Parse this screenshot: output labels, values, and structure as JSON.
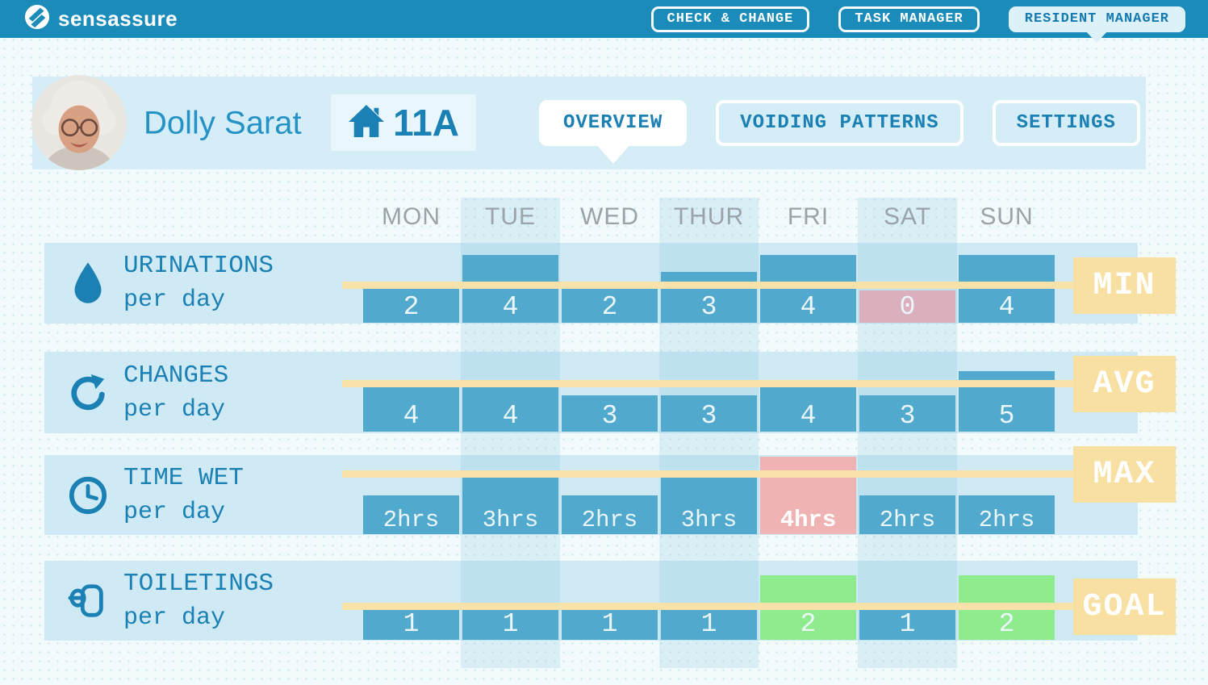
{
  "header": {
    "brand": "sensassure",
    "nav": [
      {
        "label": "CHECK & CHANGE",
        "active": false
      },
      {
        "label": "TASK MANAGER",
        "active": false
      },
      {
        "label": "RESIDENT MANAGER",
        "active": true
      }
    ]
  },
  "resident": {
    "name": "Dolly Sarat",
    "room": "11A"
  },
  "tabs": [
    {
      "label": "OVERVIEW",
      "active": true
    },
    {
      "label": "VOIDING PATTERNS",
      "active": false
    },
    {
      "label": "SETTINGS",
      "active": false
    }
  ],
  "chart_data": {
    "type": "bar",
    "categories": [
      "MON",
      "TUE",
      "WED",
      "THUR",
      "FRI",
      "SAT",
      "SUN"
    ],
    "legend_position": "right",
    "grid": false,
    "rows": [
      {
        "metric": "URINATIONS",
        "subtitle": "per day",
        "icon": "water-drop-icon",
        "threshold_badge": "MIN",
        "values": [
          2,
          4,
          2,
          3,
          4,
          0,
          4
        ],
        "display": [
          "2",
          "4",
          "2",
          "3",
          "4",
          "0",
          "4"
        ],
        "states": [
          "normal",
          "normal",
          "normal",
          "normal",
          "normal",
          "below-min",
          "normal"
        ]
      },
      {
        "metric": "CHANGES",
        "subtitle": "per day",
        "icon": "refresh-icon",
        "threshold_badge": "AVG",
        "values": [
          4,
          4,
          3,
          3,
          4,
          3,
          5
        ],
        "display": [
          "4",
          "4",
          "3",
          "3",
          "4",
          "3",
          "5"
        ],
        "states": [
          "normal",
          "normal",
          "normal",
          "normal",
          "normal",
          "normal",
          "normal"
        ]
      },
      {
        "metric": "TIME WET",
        "subtitle": "per day",
        "icon": "clock-icon",
        "threshold_badge": "MAX",
        "values": [
          2,
          3,
          2,
          3,
          4,
          2,
          2
        ],
        "display": [
          "2hrs",
          "3hrs",
          "2hrs",
          "3hrs",
          "4hrs",
          "2hrs",
          "2hrs"
        ],
        "states": [
          "normal",
          "normal",
          "normal",
          "normal",
          "above-max",
          "normal",
          "normal"
        ]
      },
      {
        "metric": "TOILETINGS",
        "subtitle": "per day",
        "icon": "toilet-paper-icon",
        "threshold_badge": "GOAL",
        "values": [
          1,
          1,
          1,
          1,
          2,
          1,
          2
        ],
        "display": [
          "1",
          "1",
          "1",
          "1",
          "2",
          "1",
          "2"
        ],
        "states": [
          "normal",
          "normal",
          "normal",
          "normal",
          "goal-met",
          "normal",
          "goal-met"
        ]
      }
    ]
  },
  "colors": {
    "header_bg": "#1b8cba",
    "accent_blue": "#1b81b4",
    "bar_blue": "#52a9ce",
    "row_band": "#cfeaf5",
    "threshold_yellow": "#f8e2a9",
    "badge_yellow": "#f8dfa2",
    "alert_pink_dark": "#dcafbc",
    "alert_pink_light": "#efb3b4",
    "goal_green": "#8fec8e",
    "day_label_gray": "#9aa3a9"
  }
}
